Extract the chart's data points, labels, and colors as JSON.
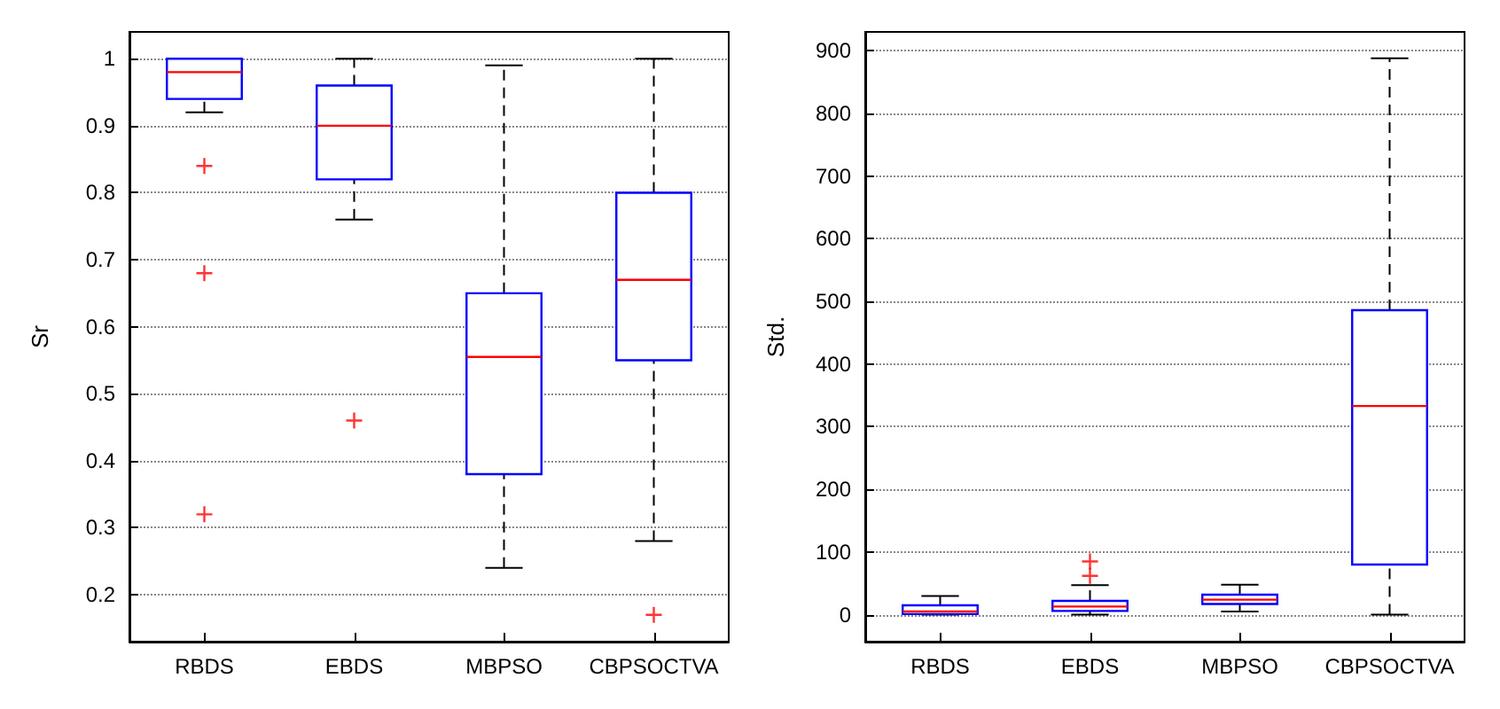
{
  "chart_data": [
    {
      "type": "box",
      "ylabel": "Sr",
      "categories": [
        "RBDS",
        "EBDS",
        "MBPSO",
        "CBPSOCTVA"
      ],
      "ylim": [
        0.13,
        1.04
      ],
      "yticks": [
        0.2,
        0.3,
        0.4,
        0.5,
        0.6,
        0.7,
        0.8,
        0.9,
        1
      ],
      "grid": "y",
      "marker": "cross",
      "series": [
        {
          "color": "#0000ff",
          "boxes": [
            {
              "low": 0.92,
              "q1": 0.94,
              "median": 0.98,
              "q3": 1.0,
              "high": 1.0,
              "outliers": [
                0.84,
                0.68,
                0.32
              ]
            },
            {
              "low": 0.76,
              "q1": 0.82,
              "median": 0.9,
              "q3": 0.96,
              "high": 1.0,
              "outliers": [
                0.46
              ]
            },
            {
              "low": 0.24,
              "q1": 0.38,
              "median": 0.555,
              "q3": 0.65,
              "high": 0.99
            },
            {
              "low": 0.28,
              "q1": 0.55,
              "median": 0.67,
              "q3": 0.8,
              "high": 1.0,
              "outliers": [
                0.17
              ]
            }
          ]
        }
      ]
    },
    {
      "type": "box",
      "ylabel": "Std.",
      "categories": [
        "RBDS",
        "EBDS",
        "MBPSO",
        "CBPSOCTVA"
      ],
      "ylim": [
        -43,
        930
      ],
      "yticks": [
        0,
        100,
        200,
        300,
        400,
        500,
        600,
        700,
        800,
        900
      ],
      "grid": "y",
      "marker": "cross",
      "series": [
        {
          "color": "#0000ff",
          "boxes": [
            {
              "low": 0,
              "q1": 1,
              "median": 5,
              "q3": 15,
              "high": 30
            },
            {
              "low": 0,
              "q1": 6,
              "median": 13,
              "q3": 22,
              "high": 47,
              "outliers": [
                62,
                85
              ]
            },
            {
              "low": 5,
              "q1": 17,
              "median": 24,
              "q3": 32,
              "high": 48
            },
            {
              "low": 0,
              "q1": 80,
              "median": 333,
              "q3": 486,
              "high": 888
            }
          ]
        }
      ]
    }
  ]
}
